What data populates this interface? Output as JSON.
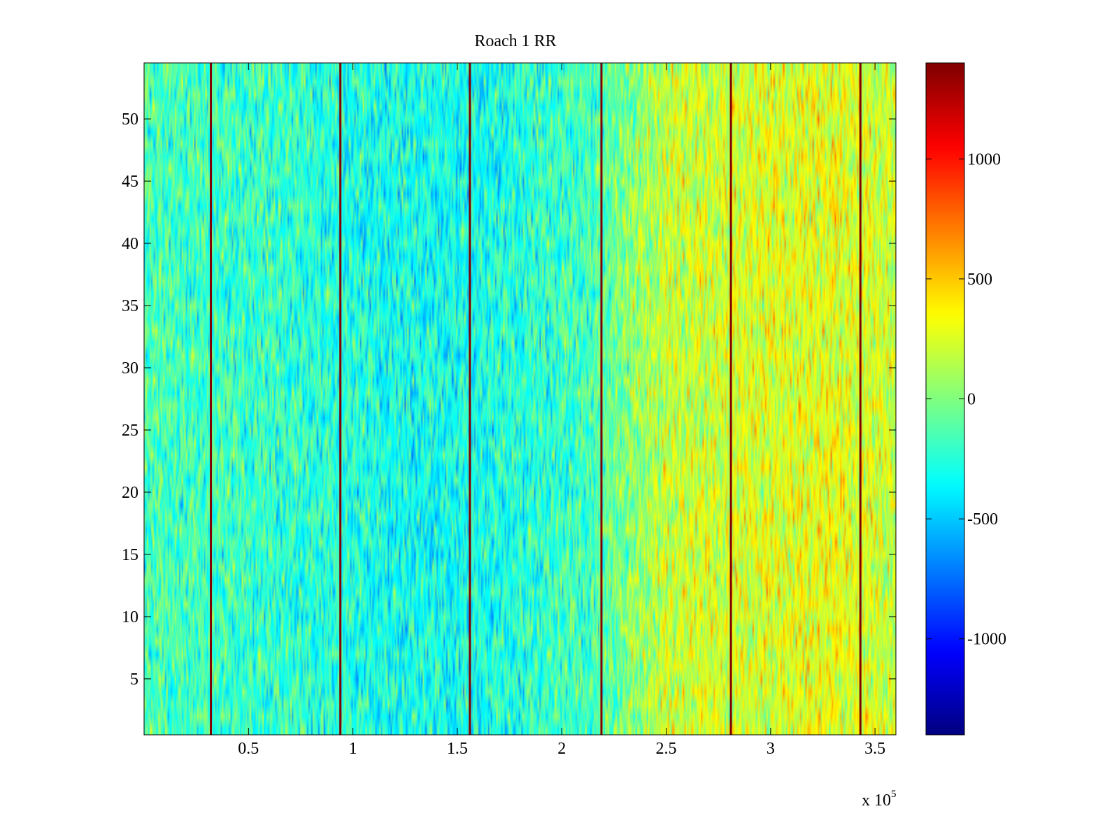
{
  "chart_data": {
    "type": "heatmap",
    "title": "Roach 1 RR",
    "xlabel": "",
    "ylabel": "",
    "x_multiplier_label": "x 10",
    "x_multiplier_exp": "5",
    "xlim": [
      0,
      360000
    ],
    "ylim": [
      0.5,
      54.5
    ],
    "x_ticks": [
      {
        "value": 50000,
        "label": "0.5"
      },
      {
        "value": 100000,
        "label": "1"
      },
      {
        "value": 150000,
        "label": "1.5"
      },
      {
        "value": 200000,
        "label": "2"
      },
      {
        "value": 250000,
        "label": "2.5"
      },
      {
        "value": 300000,
        "label": "3"
      },
      {
        "value": 350000,
        "label": "3.5"
      }
    ],
    "y_ticks": [
      {
        "value": 5,
        "label": "5"
      },
      {
        "value": 10,
        "label": "10"
      },
      {
        "value": 15,
        "label": "15"
      },
      {
        "value": 20,
        "label": "20"
      },
      {
        "value": 25,
        "label": "25"
      },
      {
        "value": 30,
        "label": "30"
      },
      {
        "value": 35,
        "label": "35"
      },
      {
        "value": 40,
        "label": "40"
      },
      {
        "value": 45,
        "label": "45"
      },
      {
        "value": 50,
        "label": "50"
      }
    ],
    "colormap": "jet",
    "color_range": [
      -1400,
      1400
    ],
    "colorbar_ticks": [
      {
        "value": 1000,
        "label": "1000"
      },
      {
        "value": 500,
        "label": "500"
      },
      {
        "value": 0,
        "label": "0"
      },
      {
        "value": -500,
        "label": "-500"
      },
      {
        "value": -1000,
        "label": "-1000"
      }
    ],
    "rows": 54,
    "spike_columns_x": [
      32000,
      94000,
      156000,
      219000,
      281000,
      343000
    ],
    "spike_value": 1400,
    "background_trend": [
      {
        "x": 0,
        "value": -150
      },
      {
        "x": 60000,
        "value": -200
      },
      {
        "x": 120000,
        "value": -300
      },
      {
        "x": 160000,
        "value": -300
      },
      {
        "x": 215000,
        "value": -150
      },
      {
        "x": 250000,
        "value": 200
      },
      {
        "x": 290000,
        "value": 250
      },
      {
        "x": 330000,
        "value": 300
      },
      {
        "x": 360000,
        "value": 200
      }
    ]
  }
}
